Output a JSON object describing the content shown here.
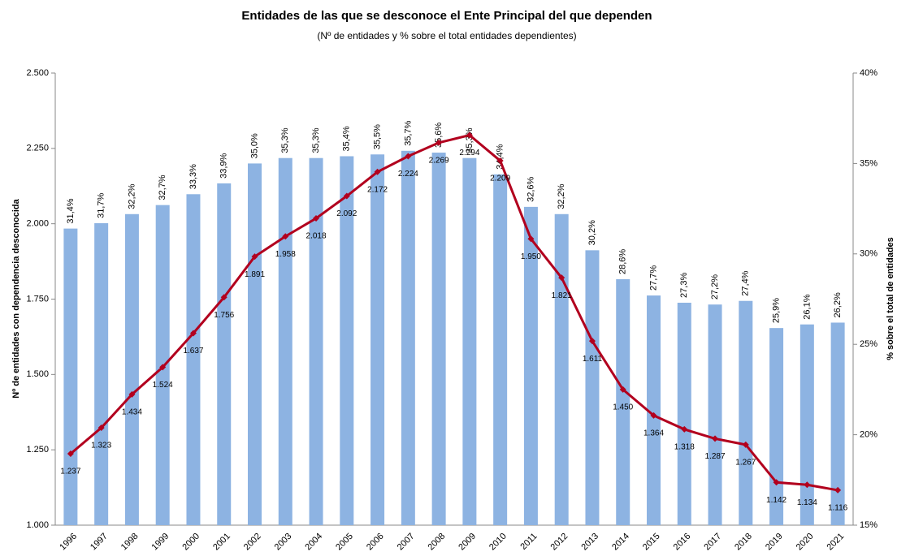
{
  "chart_data": {
    "type": "combo",
    "title": "Entidades de las que se desconoce el Ente Principal del que dependen",
    "subtitle": "(Nº de entidades y % sobre el total entidades dependientes)",
    "y_label": "Nº de entidades con dependencia desconocida",
    "y2_label": "% sobre el total de entidades",
    "categories": [
      "1996",
      "1997",
      "1998",
      "1999",
      "2000",
      "2001",
      "2002",
      "2003",
      "2004",
      "2005",
      "2006",
      "2007",
      "2008",
      "2009",
      "2010",
      "2011",
      "2012",
      "2013",
      "2014",
      "2015",
      "2016",
      "2017",
      "2018",
      "2019",
      "2020",
      "2021"
    ],
    "ylim": [
      1000,
      2500
    ],
    "yticks": [
      {
        "value": 1000,
        "label": "1.000"
      },
      {
        "value": 1250,
        "label": "1.250"
      },
      {
        "value": 1500,
        "label": "1.500"
      },
      {
        "value": 1750,
        "label": "1.750"
      },
      {
        "value": 2000,
        "label": "2.000"
      },
      {
        "value": 2250,
        "label": "2.250"
      },
      {
        "value": 2500,
        "label": "2.500"
      }
    ],
    "y2lim": [
      15,
      40
    ],
    "y2ticks": [
      {
        "value": 15,
        "label": "15%"
      },
      {
        "value": 20,
        "label": "20%"
      },
      {
        "value": 25,
        "label": "25%"
      },
      {
        "value": 30,
        "label": "30%"
      },
      {
        "value": 35,
        "label": "35%"
      },
      {
        "value": 40,
        "label": "40%"
      }
    ],
    "series": [
      {
        "type": "bar",
        "axis": "y2",
        "color": "#8db3e2",
        "values": [
          31.4,
          31.7,
          32.2,
          32.7,
          33.3,
          33.9,
          35.0,
          35.3,
          35.3,
          35.4,
          35.5,
          35.7,
          35.6,
          35.3,
          34.4,
          32.6,
          32.2,
          30.2,
          28.6,
          27.7,
          27.3,
          27.2,
          27.4,
          25.9,
          26.1,
          26.2
        ],
        "value_labels": [
          "31,4%",
          "31,7%",
          "32,2%",
          "32,7%",
          "33,3%",
          "33,9%",
          "35,0%",
          "35,3%",
          "35,3%",
          "35,4%",
          "35,5%",
          "35,7%",
          "35,6%",
          "35,3%",
          "34,4%",
          "32,6%",
          "32,2%",
          "30,2%",
          "28,6%",
          "27,7%",
          "27,3%",
          "27,2%",
          "27,4%",
          "25,9%",
          "26,1%",
          "26,2%"
        ]
      },
      {
        "type": "line",
        "axis": "y",
        "color": "#b2001e",
        "values": [
          1237,
          1323,
          1434,
          1524,
          1637,
          1756,
          1891,
          1958,
          2018,
          2092,
          2172,
          2224,
          2269,
          2294,
          2209,
          1950,
          1821,
          1611,
          1450,
          1364,
          1318,
          1287,
          1267,
          1142,
          1134,
          1116
        ],
        "value_labels": [
          "1.237",
          "1.323",
          "1.434",
          "1.524",
          "1.637",
          "1.756",
          "1.891",
          "1.958",
          "2.018",
          "2.092",
          "2.172",
          "2.224",
          "2.269",
          "2.294",
          "2.209",
          "1.950",
          "1.821",
          "1.611",
          "1.450",
          "1.364",
          "1.318",
          "1.287",
          "1.267",
          "1.142",
          "1.134",
          "1.116"
        ]
      }
    ]
  }
}
